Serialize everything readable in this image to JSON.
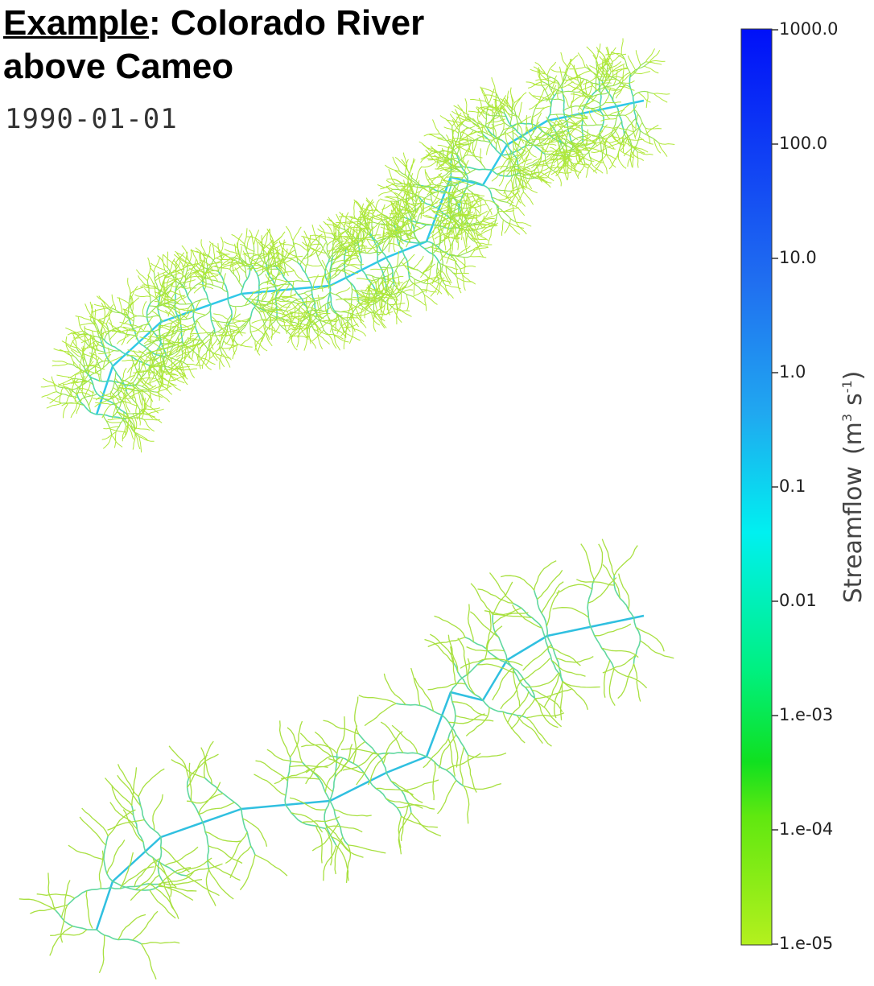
{
  "title": {
    "link": "Example",
    "rest": ": Colorado River above Cameo"
  },
  "date": "1990-01-01",
  "colorbar": {
    "ticks": [
      "1000.0",
      "100.0",
      "10.0",
      "1.0",
      "0.1",
      "0.01",
      "1.e-03",
      "1.e-04",
      "1.e-05"
    ],
    "label": {
      "text": "Streamflow",
      "open": "(m",
      "exp1": "3",
      "mid": "s",
      "exp2": "-1",
      "close": ")"
    }
  }
}
